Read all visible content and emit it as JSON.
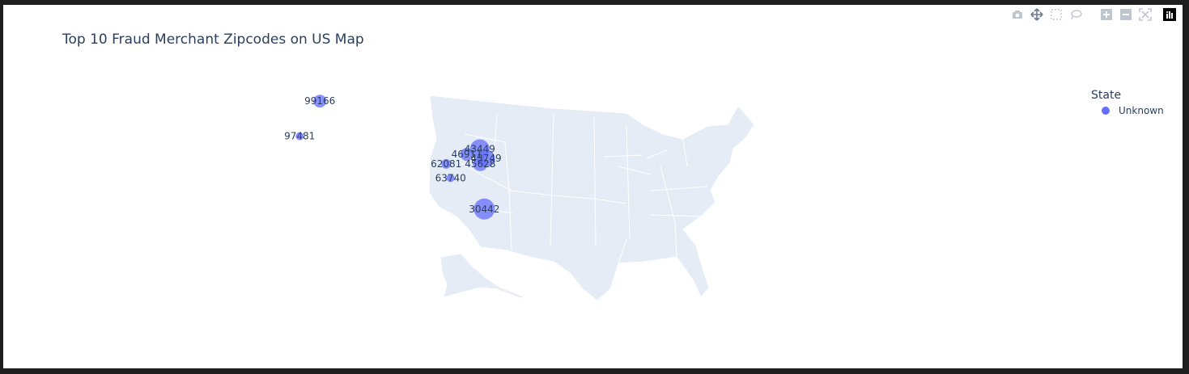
{
  "title": "Top 10 Fraud Merchant Zipcodes on US Map",
  "modebar": [
    "camera-icon",
    "pan-icon",
    "box-select-icon",
    "lasso-icon",
    "zoom-in-icon",
    "zoom-out-icon",
    "autoscale-icon",
    "plotly-logo-icon"
  ],
  "legend": {
    "title": "State",
    "items": [
      {
        "label": "Unknown",
        "color": "#636efa"
      }
    ]
  },
  "chart_data": {
    "type": "scatter",
    "projection": "albers usa",
    "title": "Top 10 Fraud Merchant Zipcodes on US Map",
    "series": [
      {
        "name": "Unknown",
        "color": "#636efa"
      }
    ],
    "points": [
      {
        "label": "99166",
        "lat": 48.6,
        "lon": -118.7
      },
      {
        "label": "97481",
        "lat": 43.4,
        "lon": -123.2
      },
      {
        "label": "43449",
        "lat": 41.5,
        "lon": -83.1
      },
      {
        "label": "46911",
        "lat": 40.7,
        "lon": -86.0
      },
      {
        "label": "43749",
        "lat": 40.1,
        "lon": -81.7
      },
      {
        "label": "45628",
        "lat": 39.3,
        "lon": -83.0
      },
      {
        "label": "62081",
        "lat": 39.3,
        "lon": -90.6
      },
      {
        "label": "63740",
        "lat": 37.2,
        "lon": -89.6
      },
      {
        "label": "30442",
        "lat": 32.6,
        "lon": -82.1
      }
    ]
  }
}
